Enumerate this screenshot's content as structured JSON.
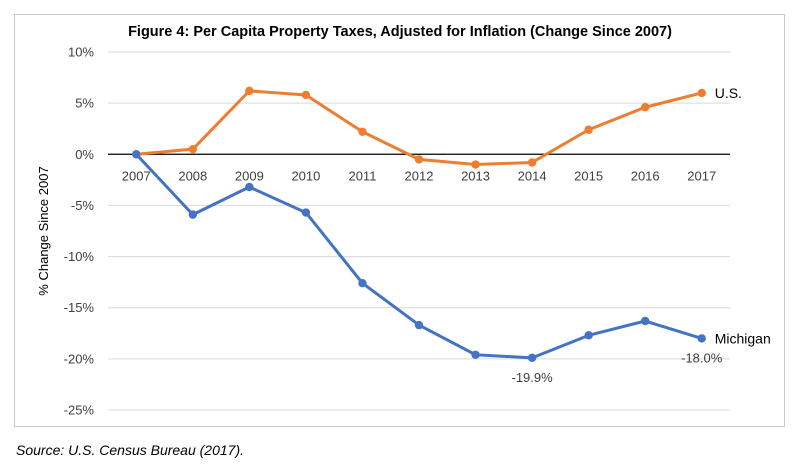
{
  "chart_data": {
    "type": "line",
    "title": "Figure 4: Per Capita Property Taxes, Adjusted for Inflation (Change Since 2007)",
    "ylabel": "% Change Since 2007",
    "xlabel": "",
    "x": [
      "2007",
      "2008",
      "2009",
      "2010",
      "2011",
      "2012",
      "2013",
      "2014",
      "2015",
      "2016",
      "2017"
    ],
    "ylim": [
      -25,
      10
    ],
    "yticks": [
      10,
      5,
      0,
      -5,
      -10,
      -15,
      -20,
      -25
    ],
    "ytick_labels": [
      "10%",
      "5%",
      "0%",
      "-5%",
      "-10%",
      "-15%",
      "-20%",
      "-25%"
    ],
    "grid": true,
    "series": [
      {
        "name": "U.S.",
        "color": "#ed7d31",
        "values": [
          0,
          0.5,
          6.2,
          5.8,
          2.2,
          -0.5,
          -1.0,
          -0.8,
          2.4,
          4.6,
          6.0
        ]
      },
      {
        "name": "Michigan",
        "color": "#4472c4",
        "values": [
          0,
          -5.9,
          -3.2,
          -5.7,
          -12.6,
          -16.7,
          -19.6,
          -19.9,
          -17.7,
          -16.3,
          -18.0
        ]
      }
    ],
    "annotations": [
      {
        "text": "-19.9%",
        "series": 1,
        "index": 7
      },
      {
        "text": "-18.0%",
        "series": 1,
        "index": 10
      }
    ]
  },
  "source_note": "Source: U.S. Census Bureau (2017)."
}
